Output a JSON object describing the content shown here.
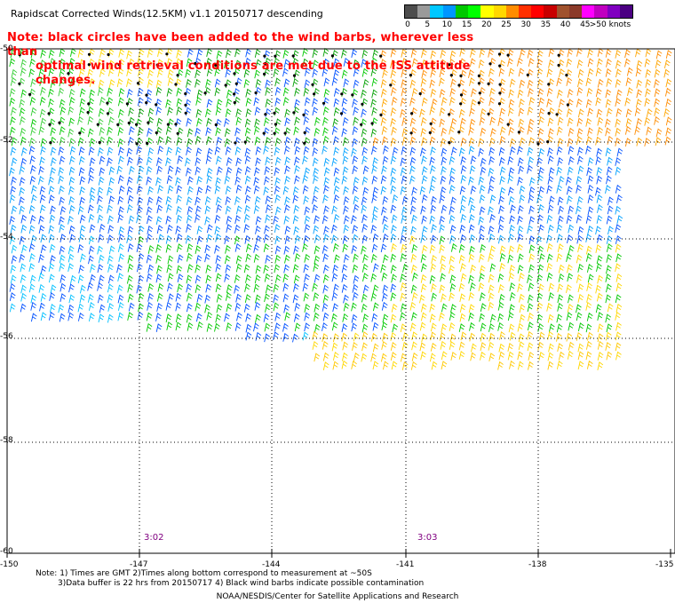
{
  "header": {
    "title": "Rapidscat Corrected Winds(12.5KM) v1.1 20150717 descending",
    "note_line1": "Note: black circles have been added to the wind barbs, wherever less than",
    "note_line2": "optimal wind retrieval conditions are met due to the ISS attitude changes."
  },
  "legend": {
    "ticks": [
      "0",
      "5",
      "10",
      "15",
      "20",
      "25",
      "30",
      "35",
      "40",
      "45",
      ">50 knots"
    ],
    "colors": [
      "#4d4d4d",
      "#9a9a9a",
      "#00c8ff",
      "#0096ff",
      "#00c800",
      "#00ff00",
      "#ffff00",
      "#ffd700",
      "#ff8c00",
      "#ff3000",
      "#ff0000",
      "#c80000",
      "#a0522d",
      "#8b3a2a",
      "#ff00ff",
      "#c000c0",
      "#8000c0",
      "#4b0082"
    ]
  },
  "map": {
    "lat_labels": [
      "-50",
      "-52",
      "-54",
      "-56",
      "-58",
      "-60"
    ],
    "lon_labels": [
      "-150",
      "-147",
      "-144",
      "-141",
      "-138",
      "-135"
    ],
    "time_labels": [
      "3:02",
      "3:03"
    ]
  },
  "footer": {
    "note1": "Note: 1) Times are GMT 2)Times along bottom correspond to measurement at ~50S",
    "note2": "3)Data buffer is 22 hrs from 20150717 4) Black wind barbs indicate possible contamination",
    "credit": "NOAA/NESDIS/Center for Satellite Applications and Research"
  }
}
